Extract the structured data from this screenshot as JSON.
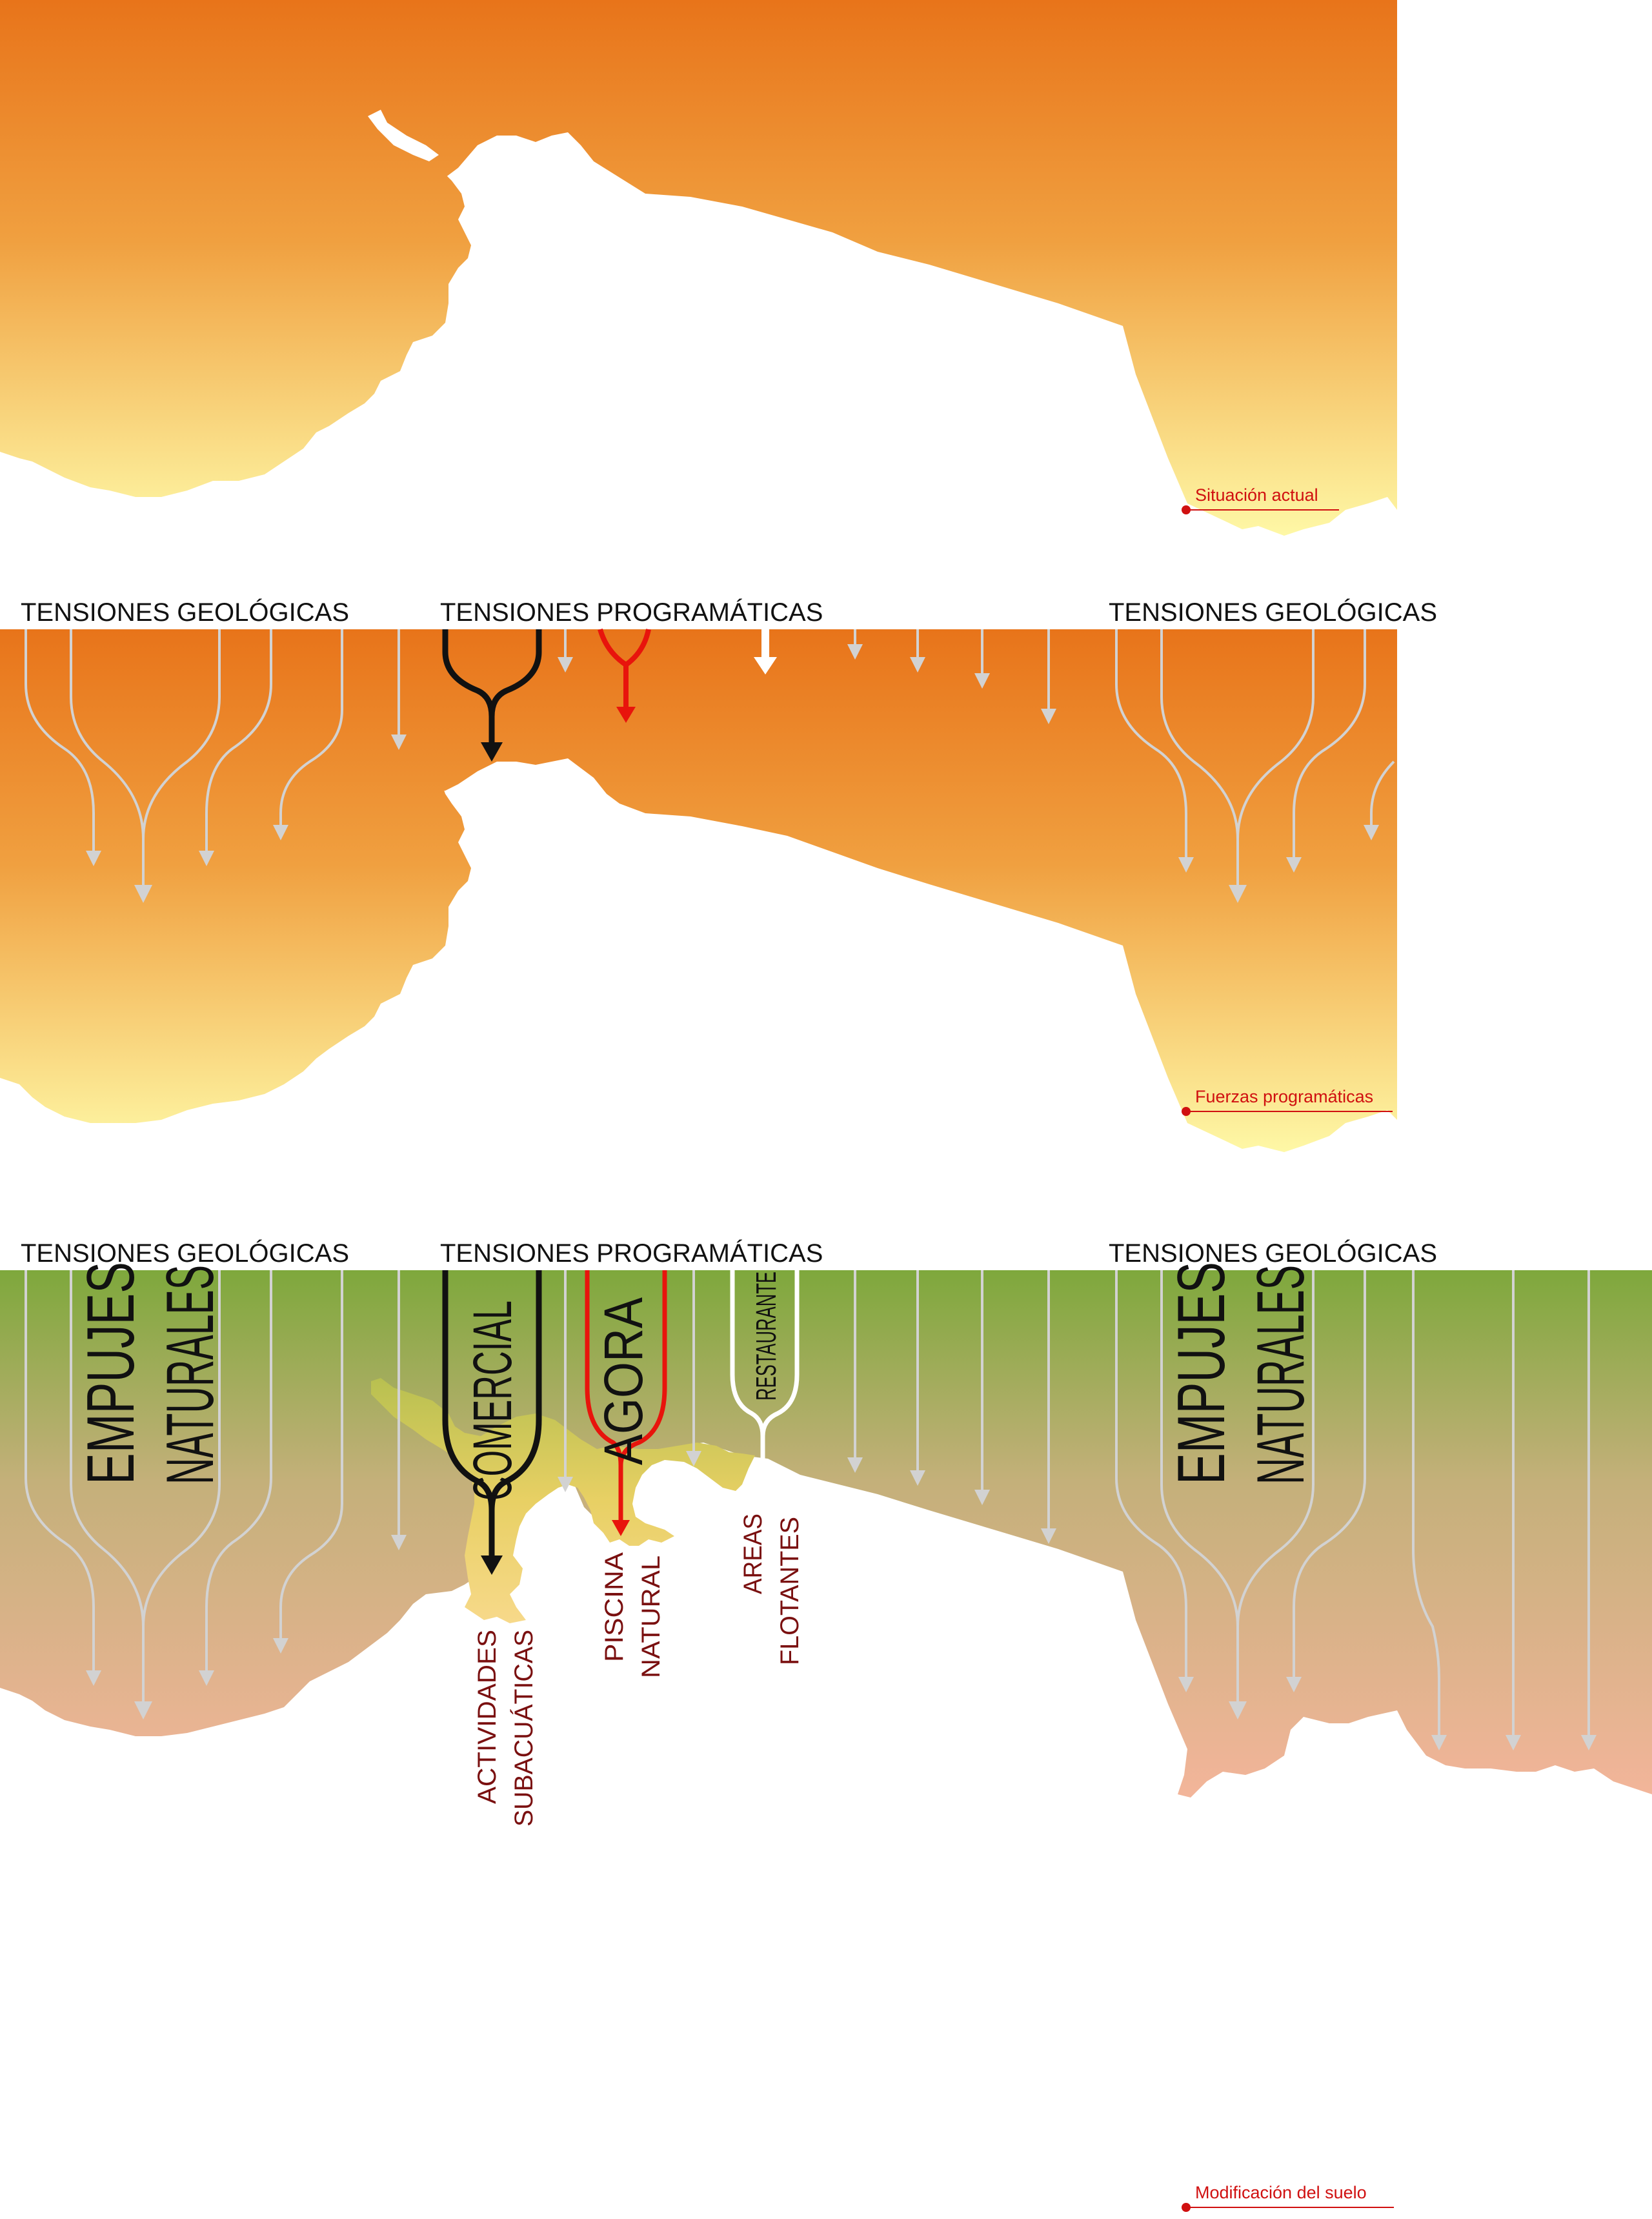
{
  "panels": {
    "panel1": {
      "caption": "Situación actual"
    },
    "panel2": {
      "caption": "Fuerzas programáticas",
      "label_left": "TENSIONES GEOLÓGICAS",
      "label_center": "TENSIONES PROGRAMÁTICAS",
      "label_right": "TENSIONES GEOLÓGICAS"
    },
    "panel3": {
      "caption": "Modificación del suelo",
      "label_left": "TENSIONES GEOLÓGICAS",
      "label_center": "TENSIONES PROGRAMÁTICAS",
      "label_right": "TENSIONES GEOLÓGICAS",
      "empujes_left_1": "EMPUJES",
      "empujes_left_2": "NATURALES",
      "empujes_right_1": "EMPUJES",
      "empujes_right_2": "NATURALES",
      "comercial": "COMERCIAL",
      "agora": "AGORA",
      "restaurante": "RESTAURANTE",
      "act_1": "ACTIVIDADES",
      "act_2": "SUBACUÁTICAS",
      "piscina_1": "PISCINA",
      "piscina_2": "NATURAL",
      "areas_1": "AREAS",
      "areas_2": "FLOTANTES"
    }
  },
  "colors": {
    "orange": "#e8761c",
    "yellow": "#fdf5a0",
    "green": "#7ea83c",
    "salmon": "#f2b49a",
    "sand": "#f2d27a",
    "red": "#e8140c",
    "caption_red": "#d01010"
  }
}
